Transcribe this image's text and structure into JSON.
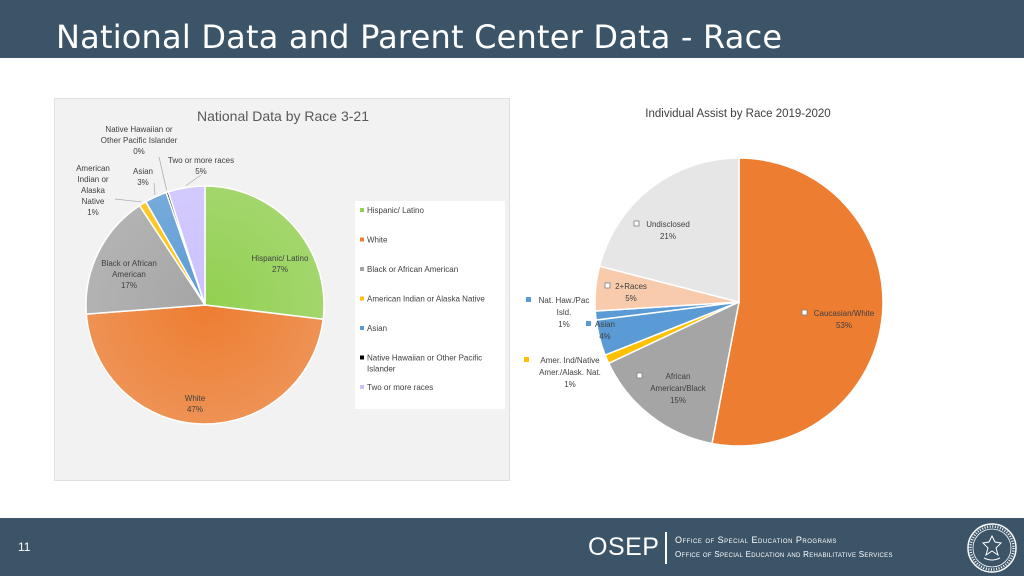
{
  "slide": {
    "title": "National Data and Parent Center Data - Race",
    "page_number": "11"
  },
  "colors": {
    "header_bg": "#3b5468",
    "hispanic": "#92d050",
    "white": "#ed7d31",
    "black": "#a5a5a5",
    "amer_indian": "#ffc000",
    "asian": "#5b9bd5",
    "nat_haw": "#000000",
    "two_or_more": "#ccc1ff",
    "undisclosed": "#e6e6e6",
    "races2": "#f8cbad"
  },
  "footer": {
    "logo_text": "OSEP",
    "office_name": "Office of Special Education Programs",
    "office_subname": "Office of Special Education and Rehabilitative Services",
    "seal_icon": "department-of-education-seal"
  },
  "chart_data": [
    {
      "type": "pie",
      "title": "National Data by Race 3-21",
      "categories": [
        "Hispanic/ Latino",
        "White",
        "Black or African American",
        "American Indian or Alaska Native",
        "Asian",
        "Native Hawaiian or Other Pacific Islander",
        "Two or more races"
      ],
      "values": [
        27,
        47,
        17,
        1,
        3,
        0.3,
        5
      ],
      "slice_labels": [
        [
          "Hispanic/ Latino",
          "27%"
        ],
        [
          "White",
          "47%"
        ],
        [
          "Black or African",
          "American",
          "17%"
        ],
        [
          "American",
          "Indian or",
          "Alaska",
          "Native",
          "1%"
        ],
        [
          "Asian",
          "3%"
        ],
        [
          "Native Hawaiian or",
          "Other Pacific Islander",
          "0%"
        ],
        [
          "Two or more races",
          "5%"
        ]
      ],
      "legend": [
        [
          "Hispanic/ Latino"
        ],
        [
          "White"
        ],
        [
          "Black or African American"
        ],
        [
          "American Indian or Alaska Native"
        ],
        [
          "Asian"
        ],
        [
          "Native Hawaiian or Other Pacific",
          "Islander"
        ],
        [
          "Two or more races"
        ]
      ],
      "legend_position": "right"
    },
    {
      "type": "pie",
      "title": "Individual Assist by Race 2019-2020",
      "categories": [
        "Caucasian/White",
        "African American/Black",
        "Amer. Ind/Native Amer./Alask. Nat.",
        "Asian",
        "Nat. Haw./Pac Isld.",
        "2+Races",
        "Undisclosed"
      ],
      "values": [
        53,
        15,
        1,
        4,
        1,
        5,
        21
      ],
      "slice_labels": [
        [
          "Caucasian/White",
          "53%"
        ],
        [
          "African",
          "American/Black",
          "15%"
        ],
        [
          "Amer. Ind/Native",
          "Amer./Alask. Nat.",
          "1%"
        ],
        [
          "Asian",
          "4%"
        ],
        [
          "Nat. Haw./Pac",
          "Isld.",
          "1%"
        ],
        [
          "2+Races",
          "5%"
        ],
        [
          "Undisclosed",
          "21%"
        ]
      ]
    }
  ]
}
